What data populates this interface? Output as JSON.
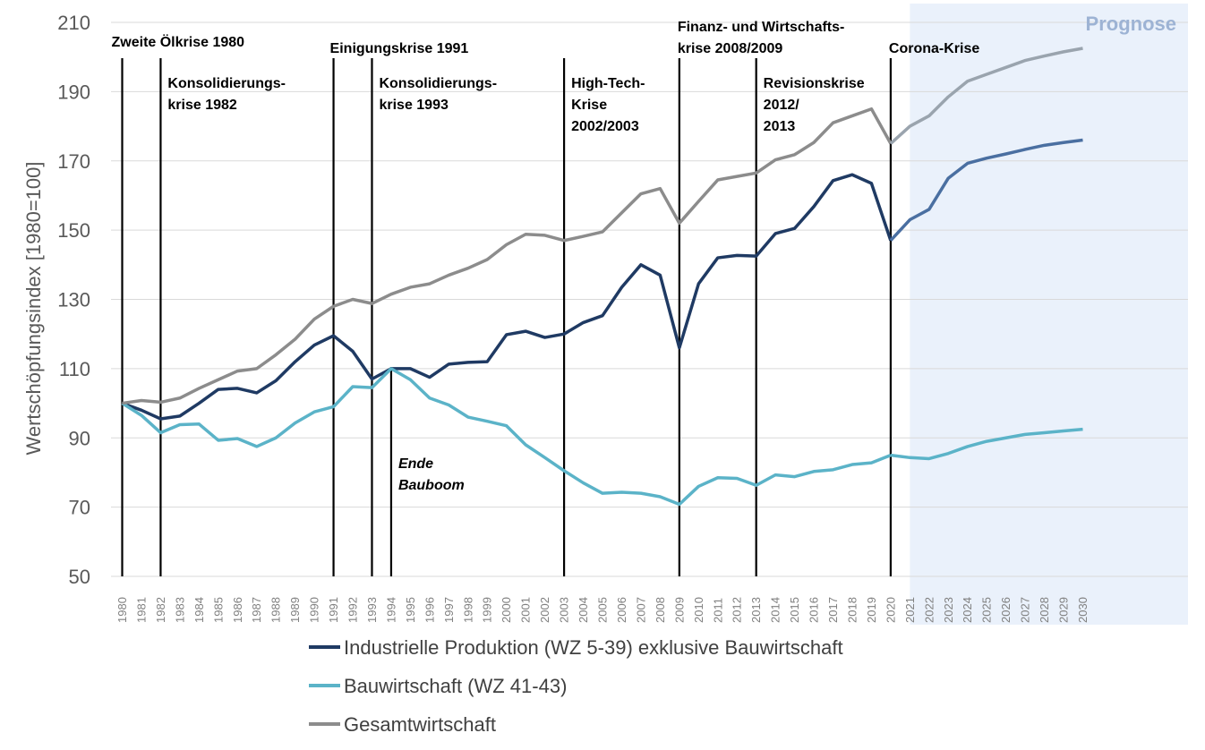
{
  "chart_data": {
    "type": "line",
    "ylabel": "Wertschöpfungsindex [1980=100]",
    "ylim": [
      50,
      210
    ],
    "yticks": [
      50,
      70,
      90,
      110,
      130,
      150,
      170,
      190,
      210
    ],
    "grid": true,
    "legend_position": "bottom",
    "forecast": {
      "label": "Prognose",
      "from": 2020,
      "to": 2030,
      "color": "#eaf1fb"
    },
    "x": [
      1980,
      1981,
      1982,
      1983,
      1984,
      1985,
      1986,
      1987,
      1988,
      1989,
      1990,
      1991,
      1992,
      1993,
      1994,
      1995,
      1996,
      1997,
      1998,
      1999,
      2000,
      2001,
      2002,
      2003,
      2004,
      2005,
      2006,
      2007,
      2008,
      2009,
      2010,
      2011,
      2012,
      2013,
      2014,
      2015,
      2016,
      2017,
      2018,
      2019,
      2020,
      2021,
      2022,
      2023,
      2024,
      2025,
      2026,
      2027,
      2028,
      2029,
      2030
    ],
    "series": [
      {
        "name": "Industrielle Produktion (WZ 5-39) exklusive Bauwirtschaft",
        "color": "#1f3a63",
        "forecast_color": "#4a6fa1",
        "values": [
          100,
          98,
          95.5,
          96.3,
          100,
          104,
          104.3,
          103,
          106.5,
          112,
          116.8,
          119.5,
          115,
          107,
          110,
          110,
          107.5,
          111.3,
          111.8,
          112,
          119.8,
          120.8,
          119,
          120,
          123.3,
          125.3,
          133.5,
          140,
          137,
          116,
          134.5,
          142,
          142.7,
          142.5,
          149,
          150.5,
          156.8,
          164.3,
          166,
          163.5,
          147,
          153,
          156,
          165,
          169.3,
          170.8,
          172,
          173.3,
          174.5,
          175.3,
          176
        ]
      },
      {
        "name": "Bauwirtschaft (WZ 41-43)",
        "color": "#5bb3c8",
        "values": [
          100,
          96.5,
          91.5,
          93.8,
          94,
          89.3,
          89.8,
          87.5,
          90,
          94.3,
          97.5,
          99,
          104.8,
          104.5,
          110,
          106.8,
          101.5,
          99.5,
          96,
          94.8,
          93.5,
          88,
          84.3,
          80.5,
          77,
          74,
          74.3,
          74,
          73,
          70.8,
          76,
          78.5,
          78.3,
          76.3,
          79.3,
          78.8,
          80.3,
          80.8,
          82.3,
          82.8,
          85,
          84.3,
          84,
          85.5,
          87.5,
          89,
          90,
          91,
          91.5,
          92,
          92.5
        ]
      },
      {
        "name": "Gesamtwirtschaft",
        "color": "#8c8c8c",
        "forecast_color": "#9aa4ae",
        "values": [
          100,
          100.8,
          100.3,
          101.5,
          104.3,
          106.8,
          109.3,
          110,
          114,
          118.5,
          124.3,
          128,
          130,
          128.8,
          131.5,
          133.5,
          134.5,
          137,
          139,
          141.5,
          145.8,
          148.8,
          148.5,
          147,
          148.2,
          149.5,
          155,
          160.5,
          162,
          152,
          158.3,
          164.5,
          165.5,
          166.5,
          170.3,
          171.8,
          175.3,
          181,
          183,
          185,
          175,
          180,
          183,
          188.5,
          193,
          195,
          197,
          199,
          200.3,
          201.5,
          202.5
        ]
      }
    ],
    "crises": [
      {
        "year": 1980,
        "lines": [
          "Zweite Ölkrise 1980"
        ],
        "italic": false
      },
      {
        "year": 1982,
        "lines": [
          "Konsolidierungs-",
          "krise 1982"
        ],
        "italic": false
      },
      {
        "year": 1991,
        "lines": [
          "Einigungskrise 1991"
        ],
        "italic": false
      },
      {
        "year": 1993,
        "lines": [
          "Konsolidierungs-",
          "krise 1993"
        ],
        "italic": false
      },
      {
        "year": 1994,
        "lines": [
          "Ende",
          "Bauboom"
        ],
        "italic": true
      },
      {
        "year": 2003,
        "lines": [
          "High-Tech-",
          "Krise",
          "2002/2003"
        ],
        "italic": false
      },
      {
        "year": 2009,
        "lines": [
          "Finanz- und Wirtschafts-",
          "krise 2008/2009"
        ],
        "italic": false
      },
      {
        "year": 2013,
        "lines": [
          "Revisionskrise",
          "2012/",
          "2013"
        ],
        "italic": false
      },
      {
        "year": 2020,
        "lines": [
          "Corona-Krise"
        ],
        "italic": false
      }
    ]
  }
}
